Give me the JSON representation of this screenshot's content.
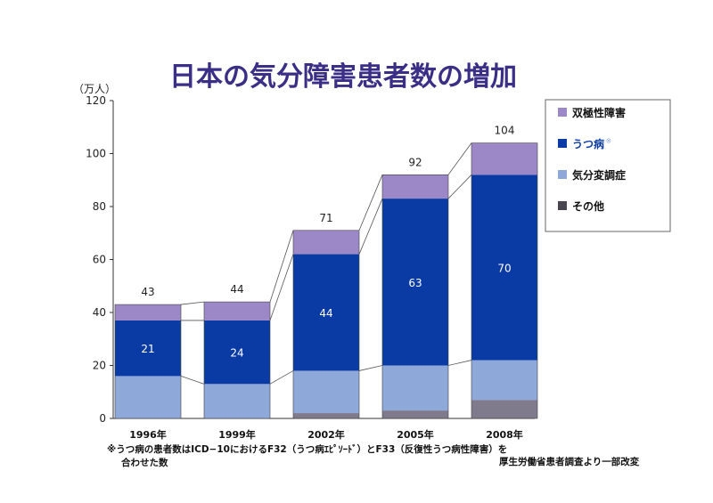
{
  "chart_data": {
    "type": "bar",
    "stacked": true,
    "title": "日本の気分障害患者数の増加",
    "ylabel": "（万人）",
    "ylim": [
      0,
      120
    ],
    "yticks": [
      "0",
      "20",
      "40",
      "60",
      "80",
      "100",
      "120"
    ],
    "categories": [
      "1996年",
      "1999年",
      "2002年",
      "2005年",
      "2008年"
    ],
    "totals": [
      "43",
      "44",
      "71",
      "92",
      "104"
    ],
    "series": [
      {
        "name": "その他",
        "values": [
          0,
          0,
          2,
          3,
          7
        ],
        "color": "#7f7a8c"
      },
      {
        "name": "気分変調症",
        "values": [
          16,
          13,
          16,
          17,
          15
        ],
        "color": "#8ea8da"
      },
      {
        "name": "うつ病",
        "values": [
          21,
          24,
          44,
          63,
          70
        ],
        "color": "#0a3aa3"
      },
      {
        "name": "双極性障害",
        "values": [
          6,
          7,
          9,
          9,
          12
        ],
        "color": "#9c87c7"
      }
    ],
    "inner_labels": [
      "21",
      "24",
      "44",
      "63",
      "70"
    ],
    "legend": [
      {
        "label": "双極性障害",
        "color": "#9c87c7",
        "text_color": "#111111"
      },
      {
        "label": "うつ病",
        "mark": "※",
        "color": "#0a3aa3",
        "text_color": "#0a3aa3"
      },
      {
        "label": "気分変調症",
        "color": "#8ea8da",
        "text_color": "#111111"
      },
      {
        "label": "その他",
        "color": "#4a4650",
        "text_color": "#111111"
      }
    ],
    "legend_position": "top-right",
    "grid": false
  },
  "notes": {
    "footnote_line1": "※うつ病の患者数はICD−10におけるF32（うつ病ｴﾋﾟｿｰﾄﾞ）とF33（反復性うつ病性障害）を",
    "footnote_line2": "合わせた数",
    "source": "厚生労働省患者調査より一部改変"
  },
  "colors": {
    "title": "#3a2e86",
    "axis": "#333333"
  }
}
